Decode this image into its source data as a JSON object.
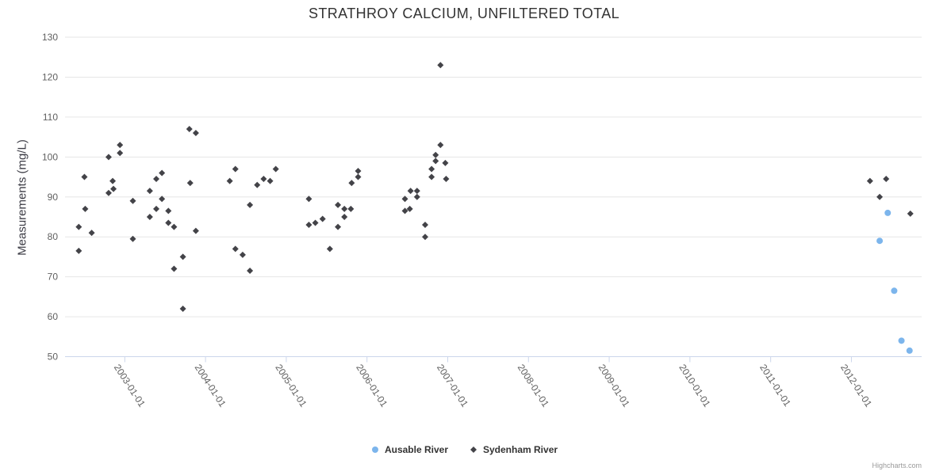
{
  "credits": "Highcharts.com",
  "chart_data": {
    "type": "scatter",
    "title": "STRATHROY CALCIUM, UNFILTERED TOTAL",
    "xlabel": "",
    "ylabel": "Measurements (mg/L)",
    "grid": "horizontal",
    "legend_position": "bottom-center",
    "x_axis": {
      "min": 2002.26,
      "max": 2012.87,
      "label_rotation_deg": 57,
      "ticks": [
        {
          "value": 2003,
          "label": "2003-01-01"
        },
        {
          "value": 2004,
          "label": "2004-01-01"
        },
        {
          "value": 2005,
          "label": "2005-01-01"
        },
        {
          "value": 2006,
          "label": "2006-01-01"
        },
        {
          "value": 2007,
          "label": "2007-01-01"
        },
        {
          "value": 2008,
          "label": "2008-01-01"
        },
        {
          "value": 2009,
          "label": "2009-01-01"
        },
        {
          "value": 2010,
          "label": "2010-01-01"
        },
        {
          "value": 2011,
          "label": "2011-01-01"
        },
        {
          "value": 2012,
          "label": "2012-01-01"
        }
      ]
    },
    "y_axis": {
      "min": 50,
      "max": 130,
      "tick_interval": 10,
      "tick_labels": [
        "50",
        "60",
        "70",
        "80",
        "90",
        "100",
        "110",
        "120",
        "130"
      ]
    },
    "series": [
      {
        "name": "Ausable River",
        "color": "#7cb5ec",
        "marker": "circle",
        "data": [
          [
            2012.35,
            79
          ],
          [
            2012.45,
            86
          ],
          [
            2012.53,
            66.5
          ],
          [
            2012.62,
            54
          ],
          [
            2012.72,
            51.5
          ]
        ]
      },
      {
        "name": "Sydenham River",
        "color": "#434348",
        "marker": "diamond",
        "data": [
          [
            2002.43,
            82.5
          ],
          [
            2002.43,
            76.5
          ],
          [
            2002.5,
            95
          ],
          [
            2002.51,
            87
          ],
          [
            2002.59,
            81
          ],
          [
            2002.8,
            100
          ],
          [
            2002.8,
            91
          ],
          [
            2002.85,
            94
          ],
          [
            2002.86,
            92
          ],
          [
            2002.94,
            103
          ],
          [
            2002.94,
            101
          ],
          [
            2003.1,
            89
          ],
          [
            2003.1,
            79.5
          ],
          [
            2003.31,
            91.5
          ],
          [
            2003.31,
            85
          ],
          [
            2003.39,
            94.5
          ],
          [
            2003.39,
            87
          ],
          [
            2003.46,
            96
          ],
          [
            2003.46,
            89.5
          ],
          [
            2003.54,
            86.5
          ],
          [
            2003.54,
            83.5
          ],
          [
            2003.61,
            82.5
          ],
          [
            2003.61,
            72
          ],
          [
            2003.72,
            75
          ],
          [
            2003.72,
            62
          ],
          [
            2003.8,
            107
          ],
          [
            2003.81,
            93.5
          ],
          [
            2003.88,
            106
          ],
          [
            2003.88,
            81.5
          ],
          [
            2004.3,
            94
          ],
          [
            2004.37,
            97
          ],
          [
            2004.37,
            77
          ],
          [
            2004.46,
            75.5
          ],
          [
            2004.55,
            88
          ],
          [
            2004.55,
            71.5
          ],
          [
            2004.64,
            93
          ],
          [
            2004.72,
            94.5
          ],
          [
            2004.8,
            94
          ],
          [
            2004.87,
            97
          ],
          [
            2005.28,
            89.5
          ],
          [
            2005.28,
            83
          ],
          [
            2005.36,
            83.5
          ],
          [
            2005.45,
            84.5
          ],
          [
            2005.54,
            77
          ],
          [
            2005.64,
            88
          ],
          [
            2005.64,
            82.5
          ],
          [
            2005.72,
            87
          ],
          [
            2005.72,
            85
          ],
          [
            2005.8,
            87
          ],
          [
            2005.81,
            93.5
          ],
          [
            2005.89,
            96.5
          ],
          [
            2005.89,
            95
          ],
          [
            2006.47,
            89.5
          ],
          [
            2006.47,
            86.5
          ],
          [
            2006.53,
            87
          ],
          [
            2006.54,
            91.5
          ],
          [
            2006.62,
            91.5
          ],
          [
            2006.62,
            90
          ],
          [
            2006.72,
            83
          ],
          [
            2006.72,
            80
          ],
          [
            2006.8,
            97
          ],
          [
            2006.8,
            95
          ],
          [
            2006.85,
            100.5
          ],
          [
            2006.85,
            99
          ],
          [
            2006.91,
            123
          ],
          [
            2006.91,
            103
          ],
          [
            2006.97,
            98.5
          ],
          [
            2006.98,
            94.5
          ],
          [
            2012.23,
            94
          ],
          [
            2012.35,
            90
          ],
          [
            2012.43,
            94.5
          ],
          [
            2012.73,
            85.8
          ]
        ]
      }
    ]
  }
}
